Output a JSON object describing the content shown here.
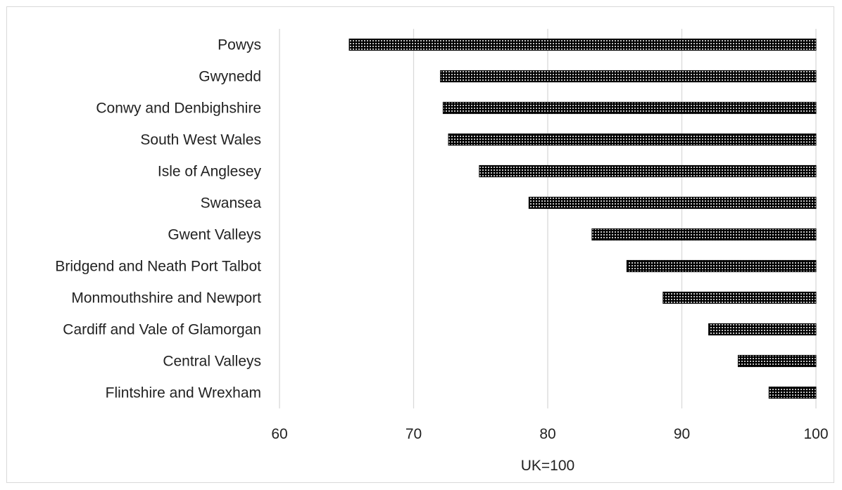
{
  "chart_data": {
    "type": "bar",
    "orientation": "horizontal",
    "categories": [
      "Powys",
      "Gwynedd",
      "Conwy and Denbighshire",
      "South West Wales",
      "Isle of Anglesey",
      "Swansea",
      "Gwent Valleys",
      "Bridgend and Neath Port Talbot",
      "Monmouthshire and Newport",
      "Cardiff and Vale of Glamorgan",
      "Central Valleys",
      "Flintshire and Wrexham"
    ],
    "values": [
      65.2,
      72.0,
      72.2,
      72.6,
      74.9,
      78.6,
      83.3,
      85.9,
      88.6,
      92.0,
      94.2,
      96.5
    ],
    "baseline": 100,
    "xlim": [
      60,
      100
    ],
    "xticks": [
      "60",
      "70",
      "80",
      "90",
      "100"
    ],
    "xlabel": "UK=100",
    "ylabel": "",
    "title": "",
    "grid": "vertical",
    "legend": "none",
    "bar_fill_pattern": "dotted",
    "colors": {
      "bar": "#000000",
      "dots": "#ffffff",
      "grid": "#d9d9d9",
      "text": "#222222",
      "border": "#d9d9d9"
    }
  }
}
